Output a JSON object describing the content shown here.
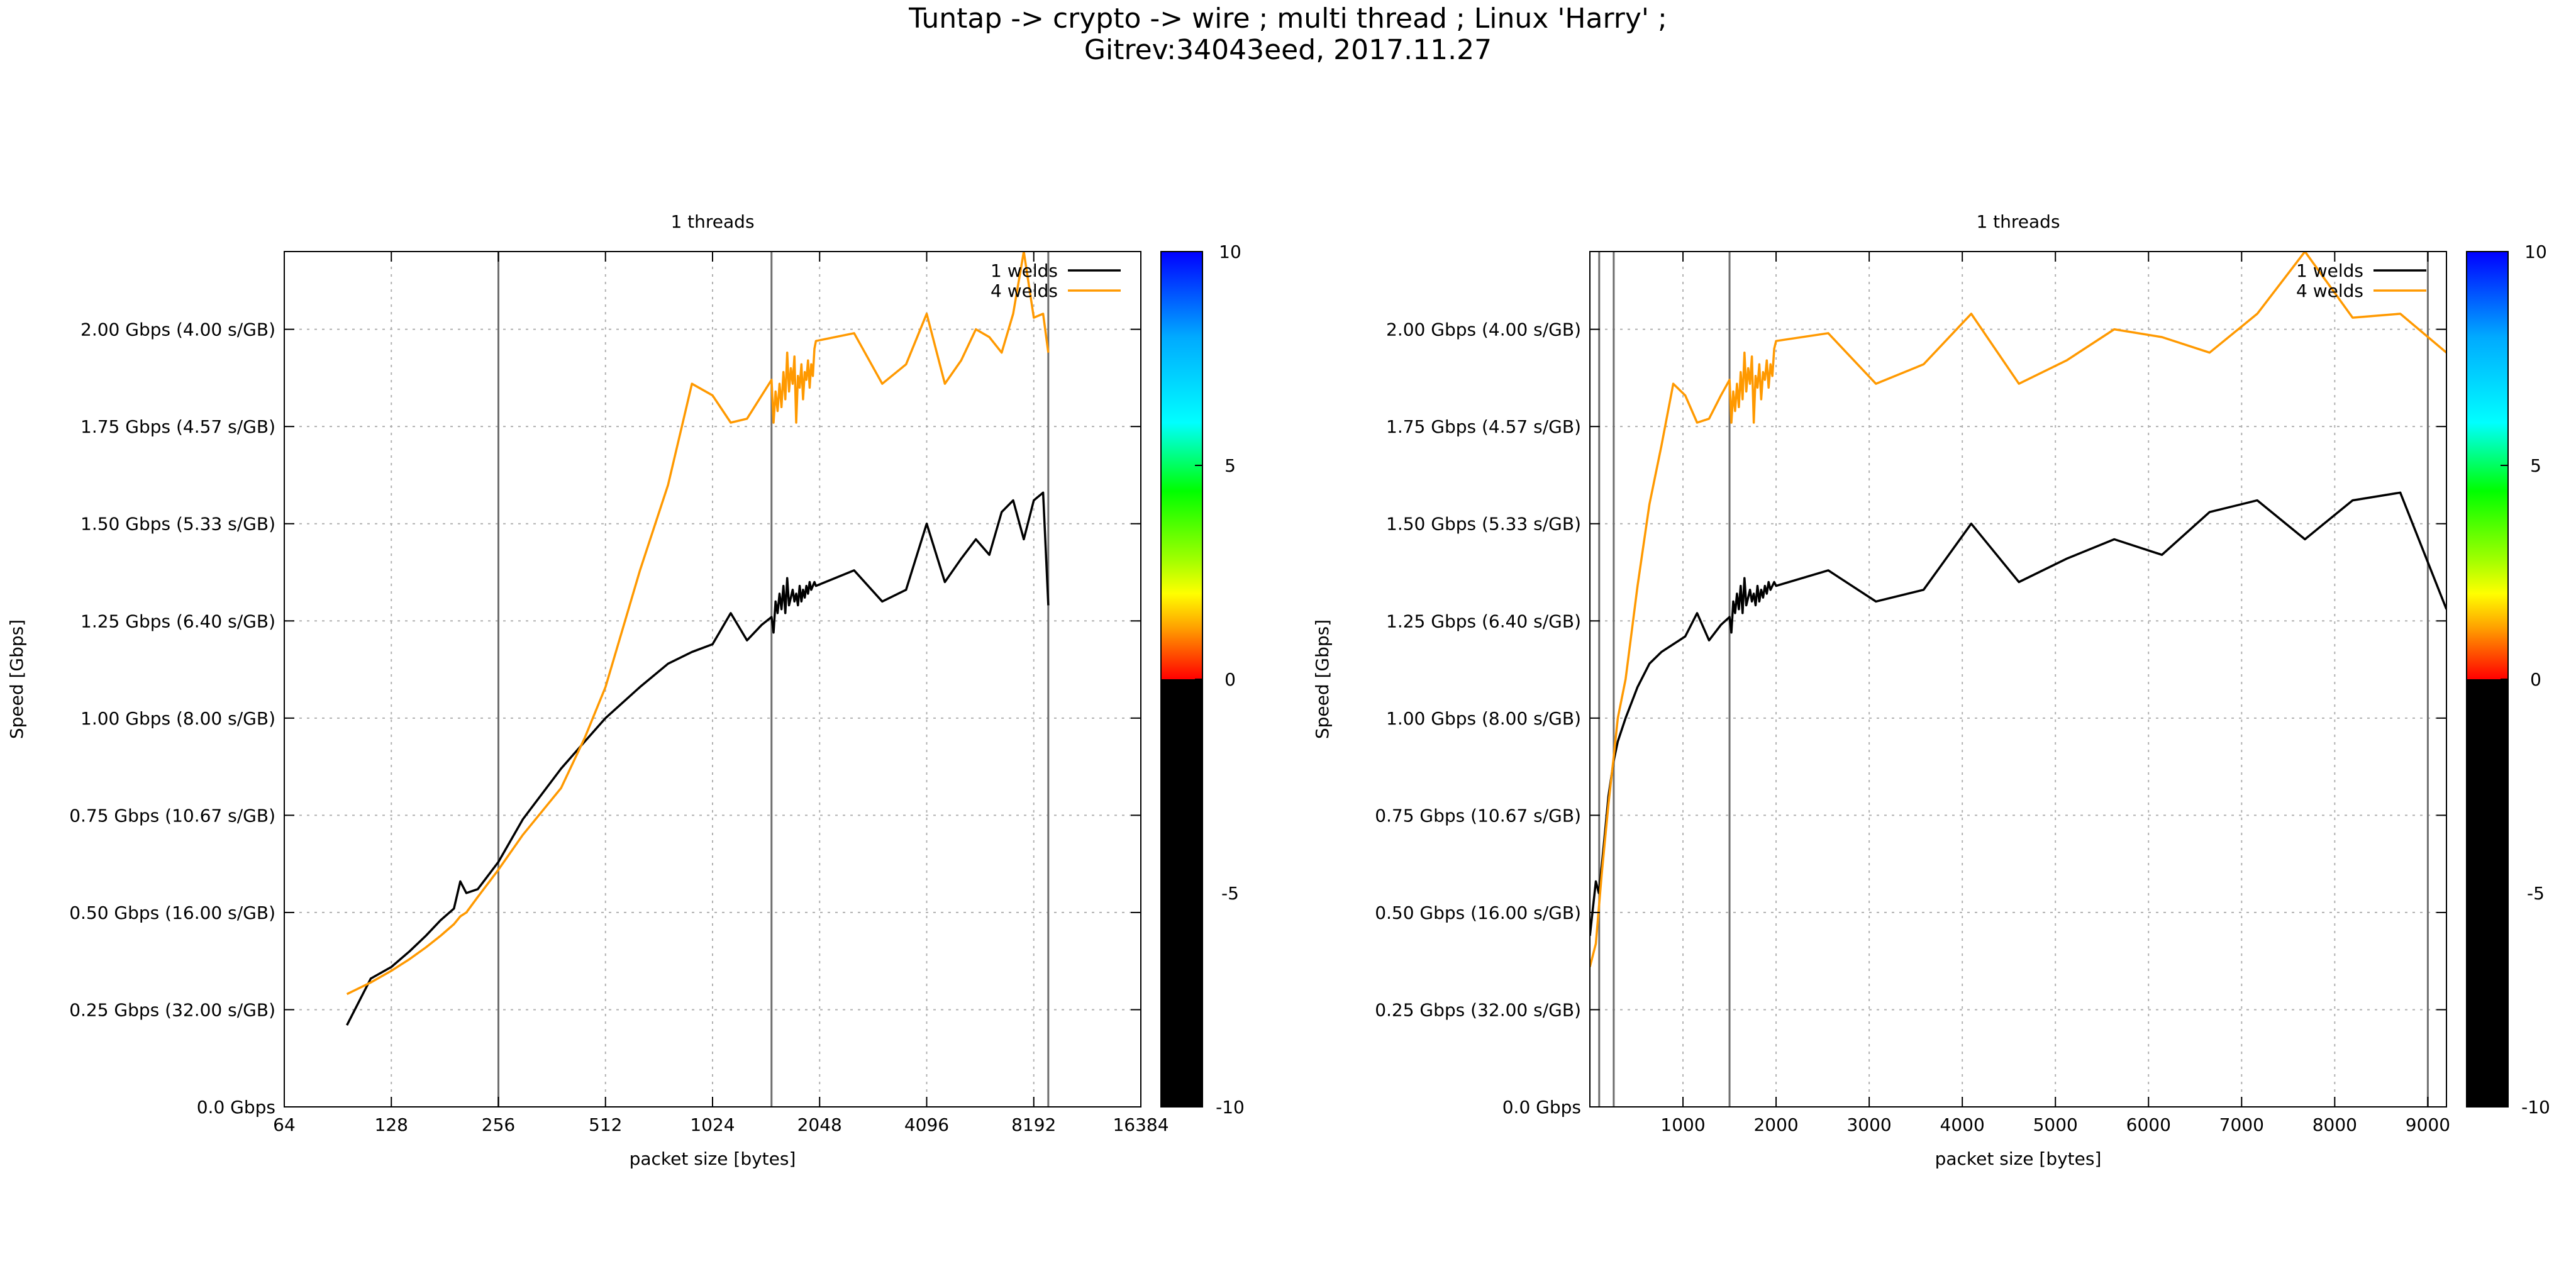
{
  "title_lines": [
    "Tuntap -> crypto -> wire ; multi thread ; Linux 'Harry' ;",
    "Gitrev:34043eed, 2017.11.27"
  ],
  "colorbar": {
    "ticks": [
      "10",
      "5",
      "0",
      "-5",
      "-10"
    ],
    "stops": [
      "#0000ff",
      "#00aaff",
      "#00ffff",
      "#00ff00",
      "#a0ff00",
      "#ffff00",
      "#ffa000",
      "#ff0000",
      "#000000"
    ]
  },
  "chart_data": [
    {
      "type": "line",
      "title": "1 threads",
      "xlabel": "packet size [bytes]",
      "ylabel": "Speed [Gbps]",
      "xscale": "log2",
      "xlim": [
        64,
        16384
      ],
      "ylim": [
        0,
        2.2
      ],
      "xticks": [
        64,
        128,
        256,
        512,
        1024,
        2048,
        4096,
        8192,
        16384
      ],
      "xtick_labels": [
        "64",
        "128",
        "256",
        "512",
        "1024",
        "2048",
        "4096",
        "8192",
        "16384"
      ],
      "yticks": [
        0,
        0.25,
        0.5,
        0.75,
        1.0,
        1.25,
        1.5,
        1.75,
        2.0
      ],
      "ytick_labels": [
        "0.0 Gbps",
        "0.25 Gbps (32.00 s/GB)",
        "0.50 Gbps (16.00 s/GB)",
        "0.75 Gbps (10.67 s/GB)",
        "1.00 Gbps (8.00 s/GB)",
        "1.25 Gbps (6.40 s/GB)",
        "1.50 Gbps (5.33 s/GB)",
        "1.75 Gbps (4.57 s/GB)",
        "2.00 Gbps (4.00 s/GB)"
      ],
      "vlines": [
        256,
        1500,
        9000
      ],
      "grid": true,
      "legend_position": "top-right",
      "series": [
        {
          "name": "1 welds",
          "color": "#000000",
          "x": [
            96,
            112,
            128,
            144,
            160,
            176,
            192,
            200,
            208,
            224,
            256,
            300,
            384,
            448,
            512,
            640,
            768,
            896,
            1024,
            1152,
            1280,
            1408,
            1500,
            1520,
            1540,
            1560,
            1580,
            1600,
            1620,
            1640,
            1660,
            1680,
            1700,
            1720,
            1740,
            1760,
            1780,
            1800,
            1820,
            1840,
            1860,
            1880,
            1900,
            1920,
            1940,
            1960,
            1980,
            2000,
            2560,
            3072,
            3584,
            4096,
            4608,
            5120,
            5632,
            6144,
            6656,
            7168,
            7680,
            8192,
            8704,
            9000
          ],
          "y": [
            0.21,
            0.33,
            0.36,
            0.4,
            0.44,
            0.48,
            0.51,
            0.58,
            0.55,
            0.56,
            0.63,
            0.74,
            0.87,
            0.94,
            1.0,
            1.08,
            1.14,
            1.17,
            1.19,
            1.27,
            1.2,
            1.24,
            1.26,
            1.22,
            1.3,
            1.27,
            1.32,
            1.28,
            1.34,
            1.27,
            1.36,
            1.29,
            1.31,
            1.33,
            1.3,
            1.32,
            1.29,
            1.34,
            1.3,
            1.33,
            1.31,
            1.34,
            1.32,
            1.35,
            1.33,
            1.34,
            1.35,
            1.34,
            1.38,
            1.3,
            1.33,
            1.5,
            1.35,
            1.41,
            1.46,
            1.42,
            1.53,
            1.56,
            1.46,
            1.56,
            1.58,
            1.29
          ]
        },
        {
          "name": "4 welds",
          "color": "#ff9900",
          "x": [
            96,
            112,
            128,
            144,
            160,
            176,
            192,
            200,
            208,
            224,
            256,
            300,
            384,
            448,
            512,
            640,
            768,
            896,
            1024,
            1152,
            1280,
            1408,
            1500,
            1520,
            1540,
            1560,
            1580,
            1600,
            1620,
            1640,
            1660,
            1680,
            1700,
            1720,
            1740,
            1760,
            1780,
            1800,
            1820,
            1840,
            1860,
            1880,
            1900,
            1920,
            1940,
            1960,
            1980,
            2000,
            2560,
            3072,
            3584,
            4096,
            4608,
            5120,
            5632,
            6144,
            6656,
            7168,
            7680,
            8192,
            8704,
            9000
          ],
          "y": [
            0.29,
            0.32,
            0.35,
            0.38,
            0.41,
            0.44,
            0.47,
            0.49,
            0.5,
            0.54,
            0.61,
            0.7,
            0.82,
            0.95,
            1.08,
            1.38,
            1.6,
            1.86,
            1.83,
            1.76,
            1.77,
            1.83,
            1.87,
            1.76,
            1.84,
            1.79,
            1.86,
            1.8,
            1.89,
            1.82,
            1.94,
            1.84,
            1.9,
            1.86,
            1.93,
            1.76,
            1.88,
            1.85,
            1.91,
            1.82,
            1.89,
            1.87,
            1.92,
            1.85,
            1.91,
            1.88,
            1.95,
            1.97,
            1.99,
            1.86,
            1.91,
            2.04,
            1.86,
            1.92,
            2.0,
            1.98,
            1.94,
            2.04,
            2.2,
            2.03,
            2.04,
            1.94
          ]
        }
      ]
    },
    {
      "type": "line",
      "title": "1 threads",
      "xlabel": "packet size [bytes]",
      "ylabel": "Speed [Gbps]",
      "xscale": "linear",
      "xlim": [
        0,
        9200
      ],
      "ylim": [
        0,
        2.2
      ],
      "xticks": [
        1000,
        2000,
        3000,
        4000,
        5000,
        6000,
        7000,
        8000,
        9000
      ],
      "xtick_labels": [
        "1000",
        "2000",
        "3000",
        "4000",
        "5000",
        "6000",
        "7000",
        "8000",
        "9000"
      ],
      "yticks": [
        0,
        0.25,
        0.5,
        0.75,
        1.0,
        1.25,
        1.5,
        1.75,
        2.0
      ],
      "ytick_labels": [
        "0.0 Gbps",
        "0.25 Gbps (32.00 s/GB)",
        "0.50 Gbps (16.00 s/GB)",
        "0.75 Gbps (10.67 s/GB)",
        "1.00 Gbps (8.00 s/GB)",
        "1.25 Gbps (6.40 s/GB)",
        "1.50 Gbps (5.33 s/GB)",
        "1.75 Gbps (4.57 s/GB)",
        "2.00 Gbps (4.00 s/GB)"
      ],
      "vlines": [
        100,
        256,
        1500,
        9000
      ],
      "grid": true,
      "legend_position": "top-right",
      "series": [
        {
          "name": "1 welds",
          "color": "#000000",
          "x": [
            0,
            64,
            96,
            128,
            160,
            200,
            256,
            300,
            384,
            448,
            512,
            640,
            768,
            896,
            1024,
            1152,
            1280,
            1408,
            1500,
            1520,
            1540,
            1560,
            1580,
            1600,
            1620,
            1640,
            1660,
            1680,
            1700,
            1720,
            1740,
            1760,
            1780,
            1800,
            1820,
            1840,
            1860,
            1880,
            1900,
            1920,
            1940,
            1960,
            1980,
            2000,
            2560,
            3072,
            3584,
            4096,
            4608,
            5120,
            5632,
            6144,
            6656,
            7168,
            7680,
            8192,
            8704,
            9200
          ],
          "y": [
            0.44,
            0.58,
            0.55,
            0.62,
            0.7,
            0.8,
            0.89,
            0.94,
            1.0,
            1.04,
            1.08,
            1.14,
            1.17,
            1.19,
            1.21,
            1.27,
            1.2,
            1.24,
            1.26,
            1.22,
            1.3,
            1.27,
            1.32,
            1.28,
            1.34,
            1.27,
            1.36,
            1.29,
            1.31,
            1.33,
            1.3,
            1.32,
            1.29,
            1.34,
            1.3,
            1.33,
            1.31,
            1.34,
            1.32,
            1.35,
            1.33,
            1.34,
            1.35,
            1.34,
            1.38,
            1.3,
            1.33,
            1.5,
            1.35,
            1.41,
            1.46,
            1.42,
            1.53,
            1.56,
            1.46,
            1.56,
            1.58,
            1.28
          ]
        },
        {
          "name": "4 welds",
          "color": "#ff9900",
          "x": [
            0,
            64,
            128,
            200,
            256,
            300,
            384,
            448,
            512,
            640,
            768,
            896,
            1024,
            1152,
            1280,
            1408,
            1500,
            1520,
            1540,
            1560,
            1580,
            1600,
            1620,
            1640,
            1660,
            1680,
            1700,
            1720,
            1740,
            1760,
            1780,
            1800,
            1820,
            1840,
            1860,
            1880,
            1900,
            1920,
            1940,
            1960,
            1980,
            2000,
            2560,
            3072,
            3584,
            4096,
            4608,
            5120,
            5632,
            6144,
            6656,
            7168,
            7680,
            8192,
            8704,
            9200
          ],
          "y": [
            0.36,
            0.42,
            0.6,
            0.78,
            0.9,
            1.0,
            1.1,
            1.22,
            1.34,
            1.55,
            1.7,
            1.86,
            1.83,
            1.76,
            1.77,
            1.83,
            1.87,
            1.76,
            1.84,
            1.79,
            1.86,
            1.8,
            1.89,
            1.82,
            1.94,
            1.84,
            1.9,
            1.86,
            1.93,
            1.76,
            1.88,
            1.85,
            1.91,
            1.82,
            1.89,
            1.87,
            1.92,
            1.85,
            1.91,
            1.88,
            1.95,
            1.97,
            1.99,
            1.86,
            1.91,
            2.04,
            1.86,
            1.92,
            2.0,
            1.98,
            1.94,
            2.04,
            2.2,
            2.03,
            2.04,
            1.94
          ]
        }
      ]
    }
  ]
}
